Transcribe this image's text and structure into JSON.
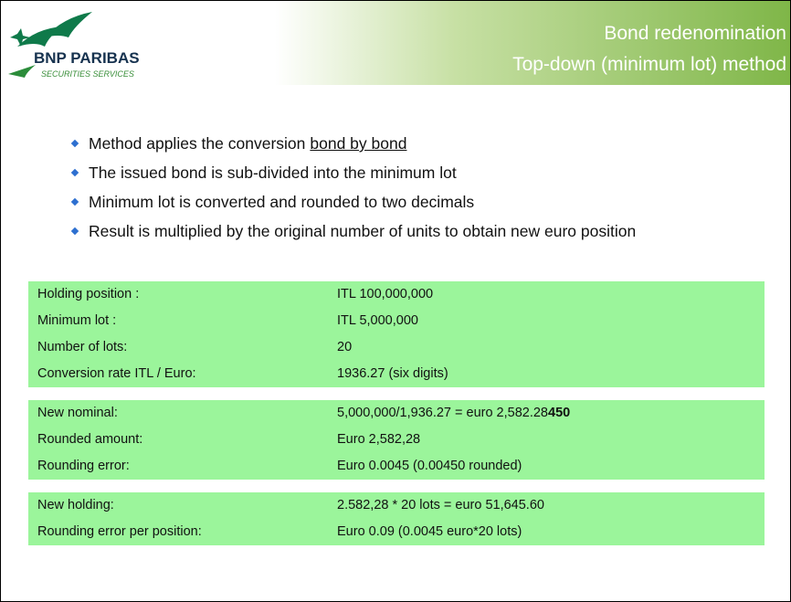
{
  "header": {
    "logo_name": "BNP PARIBAS",
    "logo_sub": "SECURITIES SERVICES",
    "title_lines": [
      "Bond redenomination",
      "Top-down (minimum lot) method"
    ]
  },
  "bullets": [
    {
      "text": "Method applies the conversion",
      "underline": "bond by bond"
    },
    {
      "text": "The issued bond is sub-divided into the minimum lot"
    },
    {
      "text": "Minimum lot is converted and rounded to two decimals"
    },
    {
      "text": "Result is multiplied by the original number of units to obtain new euro position"
    }
  ],
  "tables": [
    {
      "rows": [
        [
          "Holding position :",
          "ITL 100,000,000"
        ],
        [
          "Minimum lot :",
          "ITL 5,000,000"
        ],
        [
          "Number of lots:",
          "20"
        ],
        [
          "Conversion rate ITL / Euro:",
          "1936.27 (six digits)"
        ]
      ]
    },
    {
      "rows": [
        [
          "New nominal:",
          "5,000,000/1,936.27 = euro 2,582.28",
          "450"
        ],
        [
          "Rounded amount:",
          "Euro 2,582,28"
        ],
        [
          "Rounding error:",
          "Euro 0.0045 (0.00450 rounded)"
        ]
      ]
    },
    {
      "rows": [
        [
          "New holding:",
          "2.582,28 * 20 lots = euro 51,645.60"
        ],
        [
          "Rounding error per position:",
          "Euro 0.09 (0.0045 euro*20 lots)"
        ]
      ]
    }
  ]
}
